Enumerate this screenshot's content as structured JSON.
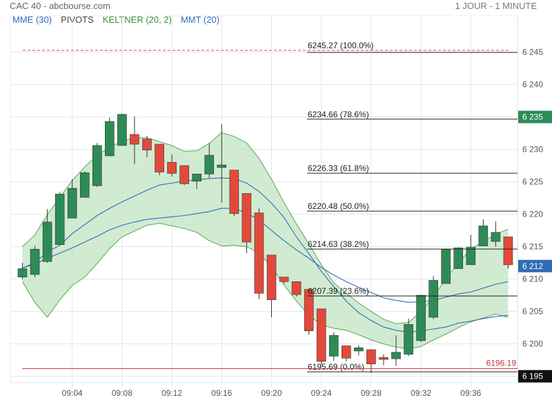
{
  "header": {
    "title": "CAC 40 - abcbourse.com",
    "period": "1 JOUR - 1 MINUTE"
  },
  "legend": [
    {
      "label": "MME (30)",
      "color": "#2f6db5"
    },
    {
      "label": "PIVOTS",
      "color": "#444444"
    },
    {
      "label": "KELTNER (20, 2)",
      "color": "#3a8f3a"
    },
    {
      "label": "MMT (20)",
      "color": "#2f6db5"
    }
  ],
  "colors": {
    "up": "#2e8b57",
    "down": "#e2493b",
    "keltner_fill": "#c9e7c9",
    "keltner_line": "#5aa55a",
    "ma": "#2f6db5",
    "grid": "#e6e6e6"
  },
  "chart_data": {
    "type": "candlestick",
    "ylim": [
      6194,
      6249
    ],
    "y_ticks": [
      "6 195",
      "6 200",
      "6 205",
      "6 210",
      "6 215",
      "6 220",
      "6 225",
      "6 230",
      "6 235",
      "6 240",
      "6 245"
    ],
    "x_ticks": [
      "09:04",
      "09:08",
      "09:12",
      "09:16",
      "09:20",
      "09:24",
      "09:28",
      "09:32",
      "09:36"
    ],
    "x_tick_index": [
      4,
      8,
      12,
      16,
      20,
      24,
      28,
      32,
      36
    ],
    "candles": [
      {
        "o": 6210.3,
        "h": 6212.5,
        "l": 6210.0,
        "c": 6211.6
      },
      {
        "o": 6210.7,
        "h": 6215.1,
        "l": 6210.3,
        "c": 6214.6
      },
      {
        "o": 6212.7,
        "h": 6220.8,
        "l": 6212.5,
        "c": 6218.8
      },
      {
        "o": 6215.3,
        "h": 6223.4,
        "l": 6215.3,
        "c": 6223.1
      },
      {
        "o": 6219.4,
        "h": 6225.4,
        "l": 6219.4,
        "c": 6224.0
      },
      {
        "o": 6222.6,
        "h": 6226.6,
        "l": 6222.6,
        "c": 6226.4
      },
      {
        "o": 6224.4,
        "h": 6231.0,
        "l": 6224.2,
        "c": 6230.6
      },
      {
        "o": 6229.0,
        "h": 6234.9,
        "l": 6229.0,
        "c": 6234.3
      },
      {
        "o": 6230.6,
        "h": 6235.5,
        "l": 6230.6,
        "c": 6235.4
      },
      {
        "o": 6232.3,
        "h": 6235.1,
        "l": 6227.7,
        "c": 6230.8
      },
      {
        "o": 6231.6,
        "h": 6232.1,
        "l": 6228.8,
        "c": 6229.9
      },
      {
        "o": 6230.8,
        "h": 6230.8,
        "l": 6226.0,
        "c": 6226.5
      },
      {
        "o": 6228.0,
        "h": 6229.2,
        "l": 6225.8,
        "c": 6226.3
      },
      {
        "o": 6227.5,
        "h": 6227.5,
        "l": 6224.5,
        "c": 6224.7
      },
      {
        "o": 6225.1,
        "h": 6225.9,
        "l": 6223.9,
        "c": 6226.2
      },
      {
        "o": 6226.2,
        "h": 6231.0,
        "l": 6225.6,
        "c": 6229.1
      },
      {
        "o": 6227.2,
        "h": 6233.9,
        "l": 6221.8,
        "c": 6227.6
      },
      {
        "o": 6226.8,
        "h": 6226.8,
        "l": 6219.7,
        "c": 6220.1
      },
      {
        "o": 6223.2,
        "h": 6223.2,
        "l": 6214.0,
        "c": 6215.7
      },
      {
        "o": 6220.2,
        "h": 6220.9,
        "l": 6206.9,
        "c": 6207.8
      },
      {
        "o": 6213.7,
        "h": 6213.7,
        "l": 6204.1,
        "c": 6206.8
      },
      {
        "o": 6210.3,
        "h": 6210.3,
        "l": 6209.3,
        "c": 6209.6
      },
      {
        "o": 6209.6,
        "h": 6209.6,
        "l": 6207.3,
        "c": 6207.6
      },
      {
        "o": 6208.4,
        "h": 6208.4,
        "l": 6201.4,
        "c": 6202.0
      },
      {
        "o": 6205.4,
        "h": 6205.4,
        "l": 6196.8,
        "c": 6197.3
      },
      {
        "o": 6198.1,
        "h": 6201.8,
        "l": 6197.4,
        "c": 6201.3
      },
      {
        "o": 6199.7,
        "h": 6199.7,
        "l": 6197.3,
        "c": 6197.8
      },
      {
        "o": 6198.9,
        "h": 6199.8,
        "l": 6198.2,
        "c": 6199.4
      },
      {
        "o": 6199.1,
        "h": 6199.1,
        "l": 6195.5,
        "c": 6196.9
      },
      {
        "o": 6197.9,
        "h": 6198.4,
        "l": 6196.7,
        "c": 6197.6
      },
      {
        "o": 6197.7,
        "h": 6201.3,
        "l": 6196.6,
        "c": 6198.7
      },
      {
        "o": 6198.4,
        "h": 6203.9,
        "l": 6198.1,
        "c": 6203.0
      },
      {
        "o": 6200.5,
        "h": 6207.5,
        "l": 6200.3,
        "c": 6207.5
      },
      {
        "o": 6204.1,
        "h": 6210.5,
        "l": 6203.8,
        "c": 6209.8
      },
      {
        "o": 6209.3,
        "h": 6214.7,
        "l": 6209.3,
        "c": 6214.6
      },
      {
        "o": 6211.6,
        "h": 6214.9,
        "l": 6211.6,
        "c": 6214.8
      },
      {
        "o": 6212.2,
        "h": 6216.8,
        "l": 6212.2,
        "c": 6214.9
      },
      {
        "o": 6215.1,
        "h": 6219.2,
        "l": 6215.1,
        "c": 6218.2
      },
      {
        "o": 6215.8,
        "h": 6218.9,
        "l": 6215.0,
        "c": 6217.2
      },
      {
        "o": 6216.5,
        "h": 6216.5,
        "l": 6211.6,
        "c": 6212.2
      }
    ],
    "keltner_upper": [
      6215.0,
      6216.8,
      6219.9,
      6222.6,
      6225.2,
      6227.3,
      6229.1,
      6230.3,
      6231.3,
      6231.8,
      6231.8,
      6231.2,
      6230.6,
      6229.7,
      6229.8,
      6230.9,
      6232.6,
      6232.0,
      6231.0,
      6228.6,
      6225.4,
      6221.8,
      6218.5,
      6215.4,
      6212.2,
      6209.4,
      6207.8,
      6206.3,
      6205.0,
      6203.8,
      6203.1,
      6203.3,
      6205.0,
      6207.2,
      6210.1,
      6212.5,
      6214.6,
      6215.8,
      6216.9,
      6217.7
    ],
    "keltner_lower": [
      6209.6,
      6206.4,
      6204.1,
      6206.8,
      6209.0,
      6210.3,
      6212.4,
      6214.7,
      6216.5,
      6217.4,
      6218.3,
      6218.6,
      6218.2,
      6217.8,
      6217.2,
      6215.9,
      6215.1,
      6215.2,
      6215.0,
      6214.0,
      6211.9,
      6209.1,
      6206.6,
      6204.4,
      6202.9,
      6202.4,
      6202.1,
      6201.4,
      6200.6,
      6200.0,
      6199.5,
      6199.2,
      6199.6,
      6200.6,
      6201.5,
      6202.5,
      6203.4,
      6204.0,
      6204.6,
      6204.1
    ],
    "mme30": [
      6211.7,
      6212.3,
      6213.2,
      6214.0,
      6214.8,
      6215.7,
      6216.6,
      6217.6,
      6218.3,
      6218.8,
      6219.2,
      6219.4,
      6219.6,
      6219.8,
      6220.1,
      6220.4,
      6220.9,
      6220.9,
      6220.2,
      6219.1,
      6217.5,
      6215.9,
      6214.5,
      6213.2,
      6211.8,
      6210.6,
      6209.6,
      6208.7,
      6207.9,
      6207.1,
      6206.7,
      6206.4,
      6206.5,
      6206.7,
      6207.2,
      6207.7,
      6208.0,
      6208.6,
      6209.2,
      6209.6
    ],
    "mmt20": [
      6211.7,
      6212.5,
      6214.2,
      6215.2,
      6217.0,
      6218.4,
      6219.8,
      6220.9,
      6221.9,
      6222.8,
      6223.7,
      6224.5,
      6224.8,
      6225.1,
      6225.3,
      6225.5,
      6225.6,
      6225.5,
      6224.8,
      6223.5,
      6221.7,
      6219.5,
      6216.5,
      6213.9,
      6211.2,
      6208.8,
      6206.6,
      6204.8,
      6203.6,
      6202.6,
      6202.1,
      6201.8,
      6202.0,
      6202.3,
      6202.6,
      6203.2,
      6203.5,
      6203.9,
      6204.2,
      6204.4
    ],
    "fibonacci": [
      {
        "label": "6245.27 (100.0%)",
        "value": 6245.27,
        "style": "dashed"
      },
      {
        "label": "6234.66 (78.6%)",
        "value": 6234.66
      },
      {
        "label": "6226.33 (61.8%)",
        "value": 6226.33
      },
      {
        "label": "6220.48 (50.0%)",
        "value": 6220.48
      },
      {
        "label": "6214.63 (38.2%)",
        "value": 6214.63
      },
      {
        "label": "6207.39 (23.6%)",
        "value": 6207.39
      },
      {
        "label": "6195.69 (0.0%)",
        "value": 6195.69
      }
    ],
    "red_level": {
      "label": "6196.19",
      "value": 6196.19
    },
    "axis_markers": [
      {
        "label": "6 235",
        "value": 6235.0,
        "color": "#2e8b57"
      },
      {
        "label": "6 212",
        "value": 6212.0,
        "color": "#2f6db5"
      },
      {
        "label": "6 195",
        "value": 6195.0,
        "color": "#111111"
      }
    ]
  }
}
